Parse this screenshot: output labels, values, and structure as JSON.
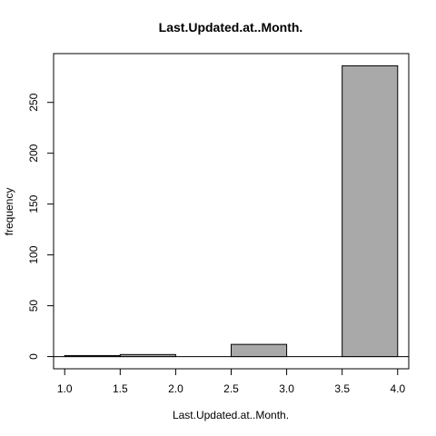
{
  "chart_data": {
    "type": "bar",
    "title": "Last.Updated.at..Month.",
    "xlabel": "Last.Updated.at..Month.",
    "ylabel": "frequency",
    "bins": [
      {
        "start": 1.0,
        "end": 1.5,
        "value": 1
      },
      {
        "start": 1.5,
        "end": 2.0,
        "value": 2
      },
      {
        "start": 2.0,
        "end": 2.5,
        "value": 0
      },
      {
        "start": 2.5,
        "end": 3.0,
        "value": 12
      },
      {
        "start": 3.0,
        "end": 3.5,
        "value": 0
      },
      {
        "start": 3.5,
        "end": 4.0,
        "value": 286
      }
    ],
    "xlim": [
      0.9,
      4.1
    ],
    "ylim": [
      -12,
      298
    ],
    "x_ticks": [
      1.0,
      1.5,
      2.0,
      2.5,
      3.0,
      3.5,
      4.0
    ],
    "x_tick_labels": [
      "1.0",
      "1.5",
      "2.0",
      "2.5",
      "3.0",
      "3.5",
      "4.0"
    ],
    "y_ticks": [
      0,
      50,
      100,
      150,
      200,
      250
    ],
    "y_tick_labels": [
      "0",
      "50",
      "100",
      "150",
      "200",
      "250"
    ],
    "grid": false,
    "bar_fill": "#a9a9a9",
    "bar_stroke": "#000000"
  }
}
